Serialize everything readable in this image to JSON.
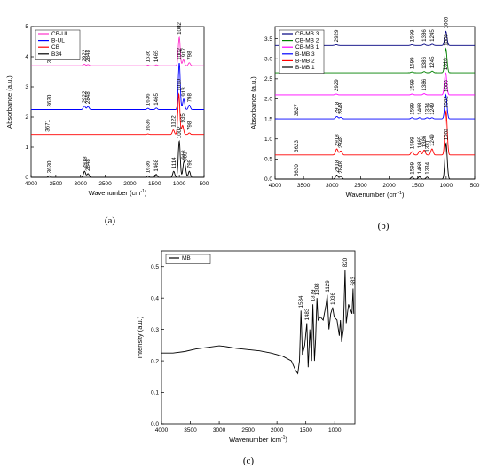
{
  "chart_data": [
    {
      "panel": "(a)",
      "type": "line",
      "xlabel": "Wavenumber (cm",
      "xlabel_sup": "-1",
      "xlabel_end": ")",
      "ylabel": "Absorbance (a.u.)",
      "xlim": [
        4000,
        500
      ],
      "ylim": [
        0,
        5
      ],
      "x_ticks": [
        4000,
        3500,
        3000,
        2500,
        2000,
        1500,
        1000,
        500
      ],
      "y_ticks": [
        0,
        1,
        2,
        3,
        4,
        5
      ],
      "grid": false,
      "legend_position": "top-left",
      "series": [
        {
          "name": "CB-UL",
          "color": "#ff33cc",
          "baseline": 3.7,
          "peaks": [
            [
              2922,
              0.05
            ],
            [
              2848,
              0.04
            ],
            [
              1636,
              0.02
            ],
            [
              1465,
              0.03
            ],
            [
              1002,
              0.95
            ],
            [
              917,
              0.2
            ],
            [
              798,
              0.1
            ]
          ],
          "annotations": [
            [
              3630,
              "3630"
            ],
            [
              2922,
              "2922"
            ],
            [
              2848,
              "2848"
            ],
            [
              1636,
              "1636"
            ],
            [
              1465,
              "1465"
            ],
            [
              1002,
              "1002"
            ],
            [
              917,
              "917"
            ],
            [
              798,
              "798"
            ]
          ]
        },
        {
          "name": "B-UL",
          "color": "#0000ff",
          "baseline": 2.25,
          "peaks": [
            [
              2922,
              0.12
            ],
            [
              2848,
              0.1
            ],
            [
              1636,
              0.04
            ],
            [
              1465,
              0.05
            ],
            [
              1002,
              1.55
            ],
            [
              913,
              0.35
            ],
            [
              798,
              0.15
            ]
          ],
          "annotations": [
            [
              3630,
              "3630"
            ],
            [
              2922,
              "2922"
            ],
            [
              2848,
              "2848"
            ],
            [
              1636,
              "1636"
            ],
            [
              1465,
              "1465"
            ],
            [
              1002,
              "1002"
            ],
            [
              913,
              "913"
            ],
            [
              798,
              "798"
            ]
          ]
        },
        {
          "name": "CB",
          "color": "#ff0000",
          "baseline": 1.42,
          "peaks": [
            [
              1636,
              0.02
            ],
            [
              1122,
              0.15
            ],
            [
              1010,
              1.35
            ],
            [
              935,
              0.3
            ],
            [
              798,
              0.05
            ]
          ],
          "annotations": [
            [
              3671,
              "3671"
            ],
            [
              1636,
              "1636"
            ],
            [
              1122,
              "1122"
            ],
            [
              1010,
              "1010"
            ],
            [
              935,
              "935"
            ],
            [
              798,
              "798"
            ]
          ]
        },
        {
          "name": "B34",
          "color": "#000000",
          "baseline": 0.0,
          "peaks": [
            [
              3630,
              0.05
            ],
            [
              2918,
              0.2
            ],
            [
              2848,
              0.12
            ],
            [
              1636,
              0.05
            ],
            [
              1468,
              0.1
            ],
            [
              1114,
              0.2
            ],
            [
              1002,
              1.2
            ],
            [
              913,
              0.4
            ],
            [
              883,
              0.3
            ],
            [
              798,
              0.2
            ]
          ],
          "annotations": [
            [
              3630,
              "3630"
            ],
            [
              2918,
              "2918"
            ],
            [
              2848,
              "2848"
            ],
            [
              1636,
              "1636"
            ],
            [
              1468,
              "1468"
            ],
            [
              1114,
              "1114"
            ],
            [
              1002,
              "1002"
            ],
            [
              913,
              "913"
            ],
            [
              798,
              "798"
            ],
            [
              883,
              "883"
            ]
          ]
        }
      ]
    },
    {
      "panel": "(b)",
      "type": "line",
      "xlabel": "Wavenumber (cm",
      "xlabel_sup": "-1",
      "xlabel_end": ")",
      "ylabel": "Absorbance (a.u.)",
      "xlim": [
        4000,
        500
      ],
      "ylim": [
        0,
        3.8
      ],
      "x_ticks": [
        4000,
        3500,
        3000,
        2500,
        2000,
        1500,
        1000,
        500
      ],
      "y_ticks": [
        0.0,
        0.5,
        1.0,
        1.5,
        2.0,
        2.5,
        3.0,
        3.5
      ],
      "grid": false,
      "legend_position": "top-left",
      "series": [
        {
          "name": "CB-MB 3",
          "color": "#000080",
          "baseline": 3.33,
          "peaks": [
            [
              2929,
              0.02
            ],
            [
              1599,
              0.02
            ],
            [
              1386,
              0.03
            ],
            [
              1245,
              0.03
            ],
            [
              1006,
              0.35
            ]
          ],
          "annotations": [
            [
              2929,
              "2929"
            ],
            [
              1599,
              "1599"
            ],
            [
              1386,
              "1386"
            ],
            [
              1245,
              "1245"
            ],
            [
              1006,
              "1006"
            ]
          ]
        },
        {
          "name": "CB-MB 2",
          "color": "#008000",
          "baseline": 2.65,
          "peaks": [
            [
              1599,
              0.02
            ],
            [
              1386,
              0.03
            ],
            [
              1245,
              0.04
            ],
            [
              1006,
              0.6
            ]
          ],
          "annotations": [
            [
              1599,
              "1599"
            ],
            [
              1386,
              "1386"
            ],
            [
              1245,
              "1245"
            ],
            [
              1006,
              "1006"
            ]
          ]
        },
        {
          "name": "CB-MB 1",
          "color": "#ff00ff",
          "baseline": 2.1,
          "peaks": [
            [
              2929,
              0.02
            ],
            [
              1599,
              0.02
            ],
            [
              1386,
              0.03
            ],
            [
              1010,
              0.55
            ]
          ],
          "annotations": [
            [
              2929,
              "2929"
            ],
            [
              1599,
              "1599"
            ],
            [
              1386,
              "1386"
            ],
            [
              1010,
              "1010"
            ]
          ]
        },
        {
          "name": "B-MB 3",
          "color": "#0000ff",
          "baseline": 1.5,
          "peaks": [
            [
              2918,
              0.06
            ],
            [
              2848,
              0.04
            ],
            [
              1599,
              0.03
            ],
            [
              1468,
              0.03
            ],
            [
              1334,
              0.03
            ],
            [
              1249,
              0.03
            ],
            [
              1006,
              0.6
            ]
          ],
          "annotations": [
            [
              3627,
              "3627"
            ],
            [
              2918,
              "2918"
            ],
            [
              2848,
              "2848"
            ],
            [
              1599,
              "1599"
            ],
            [
              1468,
              "1468"
            ],
            [
              1334,
              "1334"
            ],
            [
              1249,
              "1249"
            ],
            [
              1006,
              "1006"
            ]
          ]
        },
        {
          "name": "B-MB 2",
          "color": "#ff0000",
          "baseline": 0.6,
          "peaks": [
            [
              2918,
              0.15
            ],
            [
              2848,
              0.1
            ],
            [
              1599,
              0.08
            ],
            [
              1465,
              0.1
            ],
            [
              1386,
              0.12
            ],
            [
              1249,
              0.15
            ],
            [
              1002,
              1.1
            ]
          ],
          "annotations": [
            [
              3623,
              "3623"
            ],
            [
              2918,
              "2918"
            ],
            [
              2848,
              "2848"
            ],
            [
              1599,
              "1599"
            ],
            [
              1465,
              "1465"
            ],
            [
              1386,
              "1386"
            ],
            [
              1331,
              "1331"
            ],
            [
              1249,
              "1249"
            ],
            [
              1002,
              "1002"
            ]
          ]
        },
        {
          "name": "B-MB 1",
          "color": "#000000",
          "baseline": 0.0,
          "peaks": [
            [
              2918,
              0.1
            ],
            [
              2848,
              0.07
            ],
            [
              1599,
              0.05
            ],
            [
              1468,
              0.06
            ],
            [
              1334,
              0.05
            ],
            [
              1002,
              0.9
            ]
          ],
          "annotations": [
            [
              3630,
              "3630"
            ],
            [
              2918,
              "2918"
            ],
            [
              2848,
              "2848"
            ],
            [
              1599,
              "1599"
            ],
            [
              1468,
              "1468"
            ],
            [
              1334,
              "1334"
            ],
            [
              1002,
              "1002"
            ]
          ]
        }
      ]
    },
    {
      "panel": "(c)",
      "type": "line",
      "xlabel": "Wavenumber (cm",
      "xlabel_sup": "-1",
      "xlabel_end": ")",
      "ylabel": "Intensity (a.u.)",
      "xlim": [
        4000,
        650
      ],
      "ylim": [
        0.0,
        0.55
      ],
      "x_ticks": [
        4000,
        3500,
        3000,
        2500,
        2000,
        1500,
        1000
      ],
      "y_ticks": [
        0.0,
        0.1,
        0.2,
        0.3,
        0.4,
        0.5
      ],
      "grid": false,
      "legend_position": "top-left",
      "series": [
        {
          "name": "MB",
          "color": "#000000",
          "points": [
            [
              4000,
              0.225
            ],
            [
              3800,
              0.225
            ],
            [
              3600,
              0.23
            ],
            [
              3400,
              0.238
            ],
            [
              3200,
              0.243
            ],
            [
              3000,
              0.248
            ],
            [
              2900,
              0.246
            ],
            [
              2700,
              0.24
            ],
            [
              2500,
              0.236
            ],
            [
              2300,
              0.232
            ],
            [
              2100,
              0.225
            ],
            [
              1900,
              0.215
            ],
            [
              1750,
              0.2
            ],
            [
              1680,
              0.17
            ],
            [
              1640,
              0.16
            ],
            [
              1610,
              0.2
            ],
            [
              1584,
              0.36
            ],
            [
              1560,
              0.22
            ],
            [
              1520,
              0.25
            ],
            [
              1483,
              0.32
            ],
            [
              1460,
              0.18
            ],
            [
              1430,
              0.3
            ],
            [
              1400,
              0.2
            ],
            [
              1379,
              0.38
            ],
            [
              1350,
              0.2
            ],
            [
              1330,
              0.27
            ],
            [
              1308,
              0.4
            ],
            [
              1290,
              0.33
            ],
            [
              1250,
              0.34
            ],
            [
              1200,
              0.33
            ],
            [
              1150,
              0.38
            ],
            [
              1129,
              0.41
            ],
            [
              1100,
              0.3
            ],
            [
              1070,
              0.35
            ],
            [
              1036,
              0.37
            ],
            [
              1010,
              0.34
            ],
            [
              960,
              0.33
            ],
            [
              920,
              0.28
            ],
            [
              900,
              0.33
            ],
            [
              880,
              0.26
            ],
            [
              850,
              0.3
            ],
            [
              820,
              0.49
            ],
            [
              800,
              0.32
            ],
            [
              760,
              0.38
            ],
            [
              700,
              0.35
            ],
            [
              683,
              0.43
            ],
            [
              670,
              0.35
            ]
          ],
          "annotations": [
            [
              1584,
              "1584"
            ],
            [
              1483,
              "1483"
            ],
            [
              1379,
              "1379"
            ],
            [
              1308,
              "1308"
            ],
            [
              1129,
              "1129"
            ],
            [
              1036,
              "1036"
            ],
            [
              820,
              "820"
            ],
            [
              683,
              "683"
            ]
          ]
        }
      ]
    }
  ],
  "captions": {
    "a": "(a)",
    "b": "(b)",
    "c": "(c)"
  }
}
